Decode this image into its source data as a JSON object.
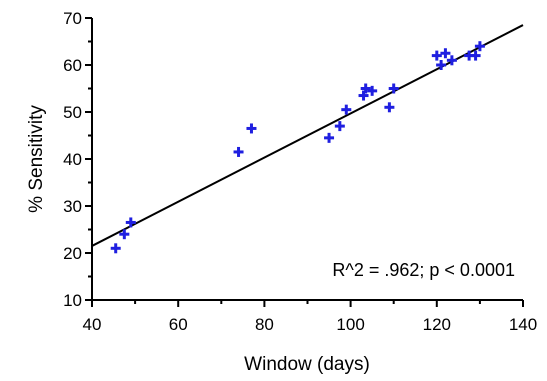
{
  "chart_data": {
    "type": "scatter",
    "xlabel": "Window (days)",
    "ylabel": "% Sensitivity",
    "xlim": [
      40,
      140
    ],
    "ylim": [
      10,
      70
    ],
    "x_ticks": [
      40,
      60,
      80,
      100,
      120,
      140
    ],
    "y_ticks": [
      10,
      20,
      30,
      40,
      50,
      60,
      70
    ],
    "x_tick_labels": [
      "40",
      "60",
      "80",
      "100",
      "120",
      "140"
    ],
    "y_tick_labels": [
      "10",
      "20",
      "30",
      "40",
      "50",
      "60",
      "70"
    ],
    "grid": false,
    "marker": "plus",
    "marker_color": "#1f1fe0",
    "line_color": "#000000",
    "series": [
      {
        "points": [
          {
            "x": 45.5,
            "y": 21
          },
          {
            "x": 47.5,
            "y": 24
          },
          {
            "x": 49,
            "y": 26.5
          },
          {
            "x": 74,
            "y": 41.5
          },
          {
            "x": 77,
            "y": 46.5
          },
          {
            "x": 95,
            "y": 44.5
          },
          {
            "x": 97.5,
            "y": 47
          },
          {
            "x": 99,
            "y": 50.5
          },
          {
            "x": 103,
            "y": 53.5
          },
          {
            "x": 103.5,
            "y": 55
          },
          {
            "x": 105,
            "y": 54.5
          },
          {
            "x": 109,
            "y": 51
          },
          {
            "x": 110,
            "y": 55
          },
          {
            "x": 120,
            "y": 62
          },
          {
            "x": 121,
            "y": 60
          },
          {
            "x": 122,
            "y": 62.5
          },
          {
            "x": 123.5,
            "y": 61
          },
          {
            "x": 127.5,
            "y": 62
          },
          {
            "x": 129,
            "y": 62
          },
          {
            "x": 130,
            "y": 64
          }
        ]
      }
    ],
    "trendline": {
      "type": "linear",
      "x": [
        40,
        140
      ],
      "y": [
        21.5,
        68.5
      ]
    },
    "annotation": "R^2 = .962; p < 0.0001"
  }
}
